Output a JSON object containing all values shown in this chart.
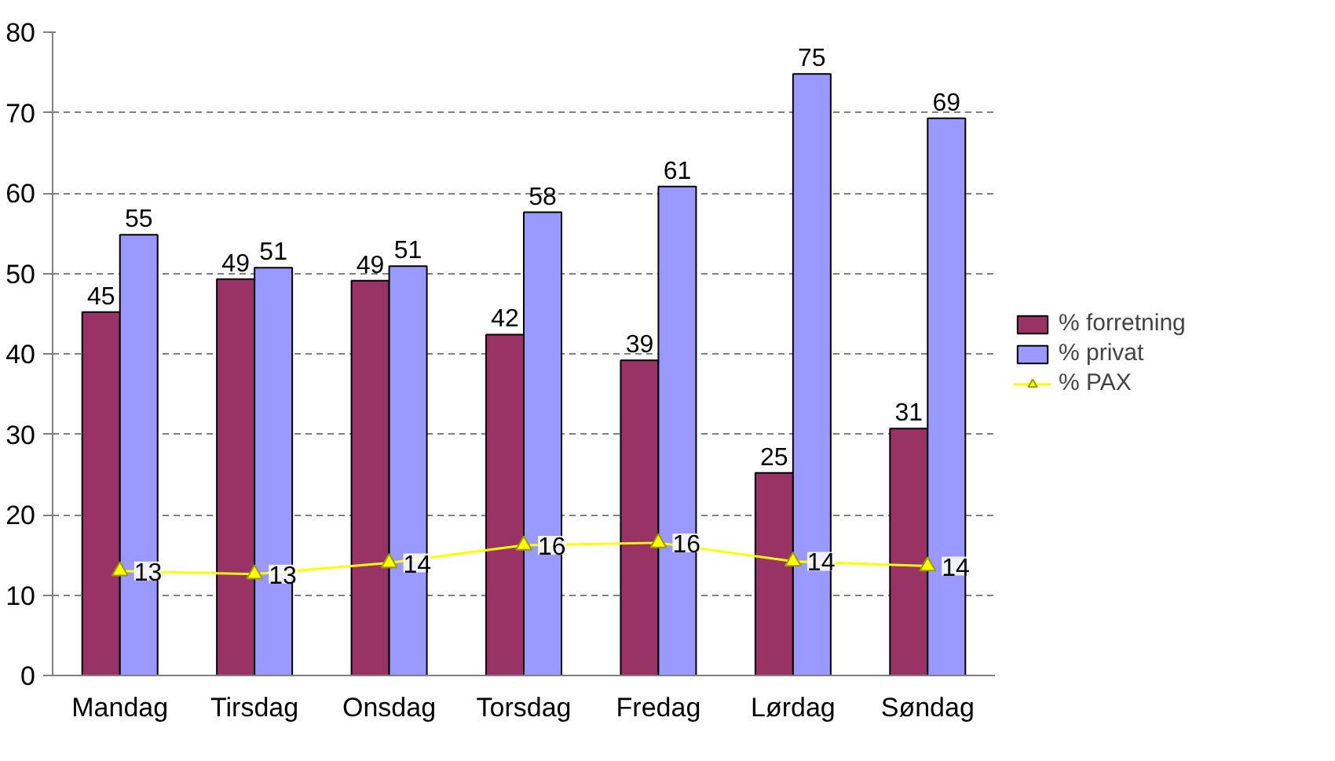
{
  "chart_data": {
    "type": "bar",
    "categories": [
      "Mandag",
      "Tirsdag",
      "Onsdag",
      "Torsdag",
      "Fredag",
      "Lørdag",
      "Søndag"
    ],
    "series": [
      {
        "name": "% forretning",
        "color": "#993366",
        "values": [
          45.2,
          49.3,
          49.1,
          42.4,
          39.2,
          25.2,
          30.7
        ],
        "value_labels": [
          "45",
          "49",
          "49",
          "42",
          "39",
          "25",
          "31"
        ]
      },
      {
        "name": "% privat",
        "color": "#9999ff",
        "values": [
          54.8,
          50.7,
          50.9,
          57.6,
          60.8,
          74.8,
          69.3
        ],
        "value_labels": [
          "55",
          "51",
          "51",
          "58",
          "61",
          "75",
          "69"
        ]
      },
      {
        "name": "% PAX",
        "type": "line",
        "color": "#ffff00",
        "marker": "triangle",
        "values": [
          13,
          12.6,
          14,
          16.2,
          16.5,
          14.2,
          13.6
        ],
        "value_labels": [
          "13",
          "13",
          "14",
          "16",
          "16",
          "14",
          "14"
        ]
      }
    ],
    "ylim": [
      0,
      80
    ],
    "yticks": [
      0,
      10,
      20,
      30,
      40,
      50,
      60,
      70,
      80
    ],
    "grid": "y",
    "legend": "right"
  }
}
